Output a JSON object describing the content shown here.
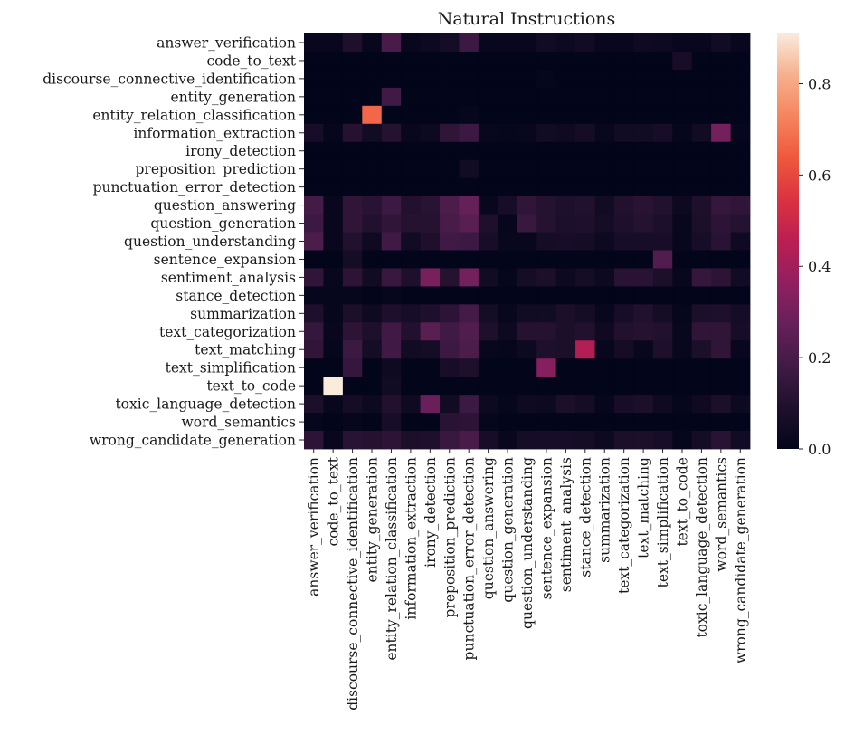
{
  "chart_data": {
    "type": "heatmap",
    "title": "Natural Instructions",
    "xlabel": "",
    "ylabel": "",
    "rows": [
      "answer_verification",
      "code_to_text",
      "discourse_connective_identification",
      "entity_generation",
      "entity_relation_classification",
      "information_extraction",
      "irony_detection",
      "preposition_prediction",
      "punctuation_error_detection",
      "question_answering",
      "question_generation",
      "question_understanding",
      "sentence_expansion",
      "sentiment_analysis",
      "stance_detection",
      "summarization",
      "text_categorization",
      "text_matching",
      "text_simplification",
      "text_to_code",
      "toxic_language_detection",
      "word_semantics",
      "wrong_candidate_generation"
    ],
    "columns": [
      "answer_verification",
      "code_to_text",
      "discourse_connective_identification",
      "entity_generation",
      "entity_relation_classification",
      "information_extraction",
      "irony_detection",
      "preposition_prediction",
      "punctuation_error_detection",
      "question_answering",
      "question_generation",
      "question_understanding",
      "sentence_expansion",
      "sentiment_analysis",
      "stance_detection",
      "summarization",
      "text_categorization",
      "text_matching",
      "text_simplification",
      "text_to_code",
      "toxic_language_detection",
      "word_semantics",
      "wrong_candidate_generation"
    ],
    "values": [
      [
        0.02,
        0.02,
        0.09,
        0.02,
        0.2,
        0.02,
        0.03,
        0.06,
        0.17,
        0.02,
        0.02,
        0.02,
        0.05,
        0.03,
        0.05,
        0.02,
        0.02,
        0.04,
        0.03,
        0.02,
        0.02,
        0.05,
        0.02
      ],
      [
        0.0,
        0.0,
        0.0,
        0.0,
        0.0,
        0.0,
        0.0,
        0.0,
        0.0,
        0.0,
        0.0,
        0.0,
        0.0,
        0.0,
        0.0,
        0.0,
        0.0,
        0.0,
        0.0,
        0.07,
        0.0,
        0.0,
        0.0
      ],
      [
        0.0,
        0.0,
        0.0,
        0.0,
        0.0,
        0.0,
        0.0,
        0.0,
        0.0,
        0.0,
        0.0,
        0.0,
        0.01,
        0.0,
        0.0,
        0.0,
        0.0,
        0.0,
        0.0,
        0.0,
        0.0,
        0.0,
        0.0
      ],
      [
        0.0,
        0.0,
        0.0,
        0.0,
        0.18,
        0.0,
        0.0,
        0.0,
        0.0,
        0.0,
        0.0,
        0.0,
        0.0,
        0.0,
        0.0,
        0.0,
        0.0,
        0.0,
        0.0,
        0.0,
        0.0,
        0.0,
        0.0
      ],
      [
        0.0,
        0.0,
        0.0,
        0.67,
        0.0,
        0.0,
        0.0,
        0.0,
        0.01,
        0.0,
        0.0,
        0.0,
        0.0,
        0.0,
        0.0,
        0.0,
        0.0,
        0.0,
        0.0,
        0.0,
        0.0,
        0.0,
        0.0
      ],
      [
        0.07,
        0.01,
        0.11,
        0.05,
        0.11,
        0.02,
        0.03,
        0.14,
        0.17,
        0.02,
        0.01,
        0.02,
        0.05,
        0.04,
        0.06,
        0.02,
        0.05,
        0.05,
        0.07,
        0.01,
        0.05,
        0.3,
        0.01
      ],
      [
        0.0,
        0.0,
        0.0,
        0.0,
        0.0,
        0.0,
        0.0,
        0.0,
        0.0,
        0.0,
        0.0,
        0.0,
        0.0,
        0.0,
        0.0,
        0.0,
        0.0,
        0.0,
        0.0,
        0.0,
        0.0,
        0.0,
        0.0
      ],
      [
        0.0,
        0.0,
        0.0,
        0.0,
        0.0,
        0.0,
        0.0,
        0.0,
        0.05,
        0.0,
        0.0,
        0.0,
        0.0,
        0.0,
        0.0,
        0.0,
        0.0,
        0.0,
        0.0,
        0.0,
        0.0,
        0.0,
        0.0
      ],
      [
        0.0,
        0.0,
        0.0,
        0.0,
        0.0,
        0.0,
        0.0,
        0.0,
        0.0,
        0.0,
        0.0,
        0.0,
        0.0,
        0.0,
        0.0,
        0.0,
        0.0,
        0.0,
        0.0,
        0.0,
        0.0,
        0.0,
        0.0
      ],
      [
        0.19,
        0.02,
        0.14,
        0.12,
        0.17,
        0.1,
        0.12,
        0.21,
        0.27,
        0.02,
        0.07,
        0.14,
        0.11,
        0.09,
        0.1,
        0.05,
        0.1,
        0.12,
        0.1,
        0.03,
        0.09,
        0.15,
        0.14
      ],
      [
        0.17,
        0.02,
        0.14,
        0.1,
        0.14,
        0.11,
        0.11,
        0.2,
        0.24,
        0.09,
        0.01,
        0.16,
        0.11,
        0.08,
        0.09,
        0.06,
        0.09,
        0.11,
        0.08,
        0.02,
        0.08,
        0.13,
        0.11
      ],
      [
        0.21,
        0.02,
        0.1,
        0.04,
        0.18,
        0.05,
        0.09,
        0.18,
        0.17,
        0.07,
        0.02,
        0.02,
        0.06,
        0.07,
        0.06,
        0.03,
        0.07,
        0.07,
        0.07,
        0.02,
        0.07,
        0.12,
        0.04
      ],
      [
        0.0,
        0.0,
        0.06,
        0.0,
        0.0,
        0.0,
        0.0,
        0.0,
        0.0,
        0.0,
        0.0,
        0.0,
        0.0,
        0.0,
        0.0,
        0.0,
        0.0,
        0.0,
        0.22,
        0.0,
        0.0,
        0.0,
        0.0
      ],
      [
        0.14,
        0.02,
        0.13,
        0.05,
        0.16,
        0.09,
        0.31,
        0.11,
        0.3,
        0.05,
        0.01,
        0.06,
        0.08,
        0.03,
        0.06,
        0.03,
        0.12,
        0.12,
        0.08,
        0.02,
        0.15,
        0.13,
        0.05
      ],
      [
        0.01,
        0.01,
        0.01,
        0.0,
        0.01,
        0.0,
        0.0,
        0.0,
        0.0,
        0.0,
        0.0,
        0.0,
        0.0,
        0.0,
        0.0,
        0.0,
        0.0,
        0.0,
        0.0,
        0.0,
        0.0,
        0.0,
        0.0
      ],
      [
        0.09,
        0.01,
        0.08,
        0.04,
        0.09,
        0.07,
        0.09,
        0.13,
        0.19,
        0.06,
        0.02,
        0.05,
        0.05,
        0.08,
        0.06,
        0.02,
        0.07,
        0.1,
        0.06,
        0.01,
        0.08,
        0.09,
        0.06
      ],
      [
        0.15,
        0.02,
        0.13,
        0.09,
        0.18,
        0.1,
        0.24,
        0.18,
        0.22,
        0.09,
        0.03,
        0.11,
        0.11,
        0.08,
        0.1,
        0.04,
        0.1,
        0.11,
        0.1,
        0.02,
        0.14,
        0.14,
        0.07
      ],
      [
        0.14,
        0.01,
        0.17,
        0.06,
        0.18,
        0.05,
        0.06,
        0.17,
        0.21,
        0.02,
        0.01,
        0.03,
        0.09,
        0.08,
        0.44,
        0.02,
        0.06,
        0.02,
        0.09,
        0.02,
        0.08,
        0.14,
        0.02
      ],
      [
        0.0,
        0.0,
        0.15,
        0.0,
        0.04,
        0.0,
        0.0,
        0.07,
        0.09,
        0.0,
        0.0,
        0.0,
        0.34,
        0.0,
        0.0,
        0.0,
        0.0,
        0.0,
        0.0,
        0.0,
        0.0,
        0.0,
        0.0
      ],
      [
        0.0,
        0.91,
        0.0,
        0.0,
        0.05,
        0.0,
        0.0,
        0.0,
        0.0,
        0.0,
        0.0,
        0.0,
        0.0,
        0.0,
        0.0,
        0.0,
        0.0,
        0.0,
        0.0,
        0.0,
        0.0,
        0.0,
        0.0
      ],
      [
        0.08,
        0.02,
        0.06,
        0.03,
        0.1,
        0.04,
        0.28,
        0.05,
        0.17,
        0.03,
        0.01,
        0.04,
        0.03,
        0.08,
        0.06,
        0.01,
        0.07,
        0.08,
        0.04,
        0.01,
        0.04,
        0.08,
        0.03
      ],
      [
        0.01,
        0.0,
        0.01,
        0.0,
        0.07,
        0.0,
        0.0,
        0.12,
        0.13,
        0.01,
        0.0,
        0.0,
        0.0,
        0.0,
        0.0,
        0.0,
        0.0,
        0.0,
        0.0,
        0.0,
        0.0,
        0.0,
        0.0
      ],
      [
        0.13,
        0.02,
        0.12,
        0.11,
        0.13,
        0.08,
        0.09,
        0.16,
        0.2,
        0.07,
        0.02,
        0.06,
        0.07,
        0.07,
        0.06,
        0.03,
        0.08,
        0.08,
        0.07,
        0.01,
        0.06,
        0.12,
        0.05
      ]
    ],
    "colorbar": {
      "vmin": 0.0,
      "vmax": 0.91,
      "ticks": [
        "0.0",
        "0.2",
        "0.4",
        "0.6",
        "0.8"
      ]
    },
    "colormap": "rocket",
    "grid": false,
    "legend": "right"
  }
}
